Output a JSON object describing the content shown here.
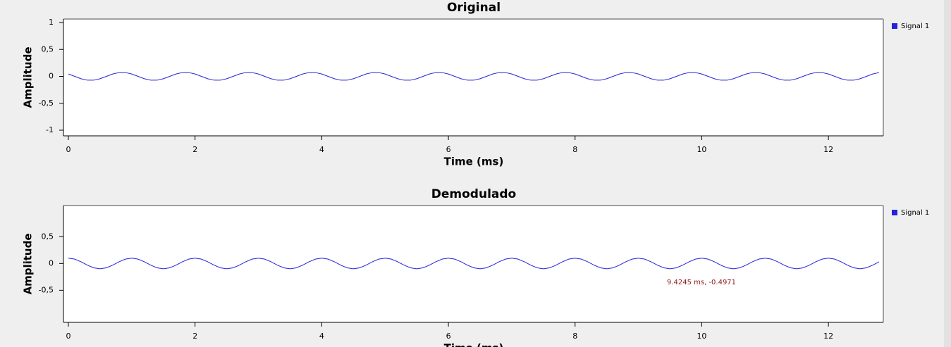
{
  "chart_data": [
    {
      "type": "line",
      "title": "Original",
      "xlabel": "Time (ms)",
      "ylabel": "Amplitude",
      "x": [
        0,
        0.1,
        0.2,
        0.3,
        0.4,
        0.5,
        0.6,
        0.7,
        0.8,
        0.9,
        1,
        1.1,
        1.2,
        1.3,
        1.4,
        1.5,
        1.6,
        1.7,
        1.8,
        1.9,
        2,
        2.1,
        2.2,
        2.3,
        2.4,
        2.5,
        2.6,
        2.7,
        2.8,
        2.9,
        3,
        3.1,
        3.2,
        3.3,
        3.4,
        3.5,
        3.6,
        3.7,
        3.8,
        3.9,
        4,
        4.1,
        4.2,
        4.3,
        4.4,
        4.5,
        4.6,
        4.7,
        4.8,
        4.9,
        5,
        5.1,
        5.2,
        5.3,
        5.4,
        5.5,
        5.6,
        5.7,
        5.8,
        5.9,
        6,
        6.1,
        6.2,
        6.3,
        6.4,
        6.5,
        6.6,
        6.7,
        6.8,
        6.9,
        7,
        7.1,
        7.2,
        7.3,
        7.4,
        7.5,
        7.6,
        7.7,
        7.8,
        7.9,
        8,
        8.1,
        8.2,
        8.3,
        8.4,
        8.5,
        8.6,
        8.7,
        8.8,
        8.9,
        9,
        9.1,
        9.2,
        9.3,
        9.4,
        9.5,
        9.6,
        9.7,
        9.8,
        9.9,
        10,
        10.1,
        10.2,
        10.3,
        10.4,
        10.5,
        10.6,
        10.7,
        10.8,
        10.9,
        11,
        11.1,
        11.2,
        11.3,
        11.4,
        11.5,
        11.6,
        11.7,
        11.8,
        11.9,
        12,
        12.1,
        12.2,
        12.3,
        12.4,
        12.5,
        12.6,
        12.7,
        12.8
      ],
      "series": [
        {
          "name": "Signal 1",
          "color": "#2323d8",
          "values": [
            0.044,
            0,
            -0.044,
            -0.071,
            -0.071,
            -0.044,
            0,
            0.044,
            0.071,
            0.071,
            0.044,
            0,
            -0.044,
            -0.071,
            -0.071,
            -0.044,
            0,
            0.044,
            0.071,
            0.071,
            0.044,
            0,
            -0.044,
            -0.071,
            -0.071,
            -0.044,
            0,
            0.044,
            0.071,
            0.071,
            0.044,
            0,
            -0.044,
            -0.071,
            -0.071,
            -0.044,
            0,
            0.044,
            0.071,
            0.071,
            0.044,
            0,
            -0.044,
            -0.071,
            -0.071,
            -0.044,
            0,
            0.044,
            0.071,
            0.071,
            0.044,
            0,
            -0.044,
            -0.071,
            -0.071,
            -0.044,
            0,
            0.044,
            0.071,
            0.071,
            0.044,
            0,
            -0.044,
            -0.071,
            -0.071,
            -0.044,
            0,
            0.044,
            0.071,
            0.071,
            0.044,
            0,
            -0.044,
            -0.071,
            -0.071,
            -0.044,
            0,
            0.044,
            0.071,
            0.071,
            0.044,
            0,
            -0.044,
            -0.071,
            -0.071,
            -0.044,
            0,
            0.044,
            0.071,
            0.071,
            0.044,
            0,
            -0.044,
            -0.071,
            -0.071,
            -0.044,
            0,
            0.044,
            0.071,
            0.071,
            0.044,
            0,
            -0.044,
            -0.071,
            -0.071,
            -0.044,
            0,
            0.044,
            0.071,
            0.071,
            0.044,
            0,
            -0.044,
            -0.071,
            -0.071,
            -0.044,
            0,
            0.044,
            0.071,
            0.071,
            0.044,
            0,
            -0.044,
            -0.071,
            -0.071,
            -0.044,
            0,
            0.044,
            0.071
          ]
        }
      ],
      "xlim": [
        0,
        12.8
      ],
      "xticks": [
        0,
        2,
        4,
        6,
        8,
        10,
        12
      ],
      "ylim": [
        -1,
        1
      ],
      "yticks": [
        1,
        {
          "value": 0.5,
          "label": "0,5"
        },
        0,
        {
          "value": -0.5,
          "label": "-0,5"
        },
        -1
      ]
    },
    {
      "type": "line",
      "title": "Demodulado",
      "xlabel": "Time (ms)",
      "ylabel": "Amplitude",
      "x": [
        0,
        0.1,
        0.2,
        0.3,
        0.4,
        0.5,
        0.6,
        0.7,
        0.8,
        0.9,
        1,
        1.1,
        1.2,
        1.3,
        1.4,
        1.5,
        1.6,
        1.7,
        1.8,
        1.9,
        2,
        2.1,
        2.2,
        2.3,
        2.4,
        2.5,
        2.6,
        2.7,
        2.8,
        2.9,
        3,
        3.1,
        3.2,
        3.3,
        3.4,
        3.5,
        3.6,
        3.7,
        3.8,
        3.9,
        4,
        4.1,
        4.2,
        4.3,
        4.4,
        4.5,
        4.6,
        4.7,
        4.8,
        4.9,
        5,
        5.1,
        5.2,
        5.3,
        5.4,
        5.5,
        5.6,
        5.7,
        5.8,
        5.9,
        6,
        6.1,
        6.2,
        6.3,
        6.4,
        6.5,
        6.6,
        6.7,
        6.8,
        6.9,
        7,
        7.1,
        7.2,
        7.3,
        7.4,
        7.5,
        7.6,
        7.7,
        7.8,
        7.9,
        8,
        8.1,
        8.2,
        8.3,
        8.4,
        8.5,
        8.6,
        8.7,
        8.8,
        8.9,
        9,
        9.1,
        9.2,
        9.3,
        9.4,
        9.5,
        9.6,
        9.7,
        9.8,
        9.9,
        10,
        10.1,
        10.2,
        10.3,
        10.4,
        10.5,
        10.6,
        10.7,
        10.8,
        10.9,
        11,
        11.1,
        11.2,
        11.3,
        11.4,
        11.5,
        11.6,
        11.7,
        11.8,
        11.9,
        12,
        12.1,
        12.2,
        12.3,
        12.4,
        12.5,
        12.6,
        12.7,
        12.8
      ],
      "series": [
        {
          "name": "Signal 1",
          "color": "#2323d8",
          "values": [
            0.1,
            0.081,
            0.031,
            -0.031,
            -0.081,
            -0.1,
            -0.081,
            -0.031,
            0.031,
            0.081,
            0.1,
            0.081,
            0.031,
            -0.031,
            -0.081,
            -0.1,
            -0.081,
            -0.031,
            0.031,
            0.081,
            0.1,
            0.081,
            0.031,
            -0.031,
            -0.081,
            -0.1,
            -0.081,
            -0.031,
            0.031,
            0.081,
            0.1,
            0.081,
            0.031,
            -0.031,
            -0.081,
            -0.1,
            -0.081,
            -0.031,
            0.031,
            0.081,
            0.1,
            0.081,
            0.031,
            -0.031,
            -0.081,
            -0.1,
            -0.081,
            -0.031,
            0.031,
            0.081,
            0.1,
            0.081,
            0.031,
            -0.031,
            -0.081,
            -0.1,
            -0.081,
            -0.031,
            0.031,
            0.081,
            0.1,
            0.081,
            0.031,
            -0.031,
            -0.081,
            -0.1,
            -0.081,
            -0.031,
            0.031,
            0.081,
            0.1,
            0.081,
            0.031,
            -0.031,
            -0.081,
            -0.1,
            -0.081,
            -0.031,
            0.031,
            0.081,
            0.1,
            0.081,
            0.031,
            -0.031,
            -0.081,
            -0.1,
            -0.081,
            -0.031,
            0.031,
            0.081,
            0.1,
            0.081,
            0.031,
            -0.031,
            -0.081,
            -0.1,
            -0.081,
            -0.031,
            0.031,
            0.081,
            0.1,
            0.081,
            0.031,
            -0.031,
            -0.081,
            -0.1,
            -0.081,
            -0.031,
            0.031,
            0.081,
            0.1,
            0.081,
            0.031,
            -0.031,
            -0.081,
            -0.1,
            -0.081,
            -0.031,
            0.031,
            0.081,
            0.1,
            0.081,
            0.031,
            -0.031,
            -0.081,
            -0.1,
            -0.081,
            -0.031,
            0.031
          ]
        }
      ],
      "xlim": [
        0,
        12.8
      ],
      "xticks": [
        0,
        2,
        4,
        6,
        8,
        10,
        12
      ],
      "ylim": [
        -1.1,
        0.99
      ],
      "yticks": [
        {
          "value": 0.5,
          "label": "0,5"
        },
        0,
        {
          "value": -0.5,
          "label": "-0,5"
        }
      ],
      "annotation": "9.4245 ms, -0.4971"
    }
  ]
}
